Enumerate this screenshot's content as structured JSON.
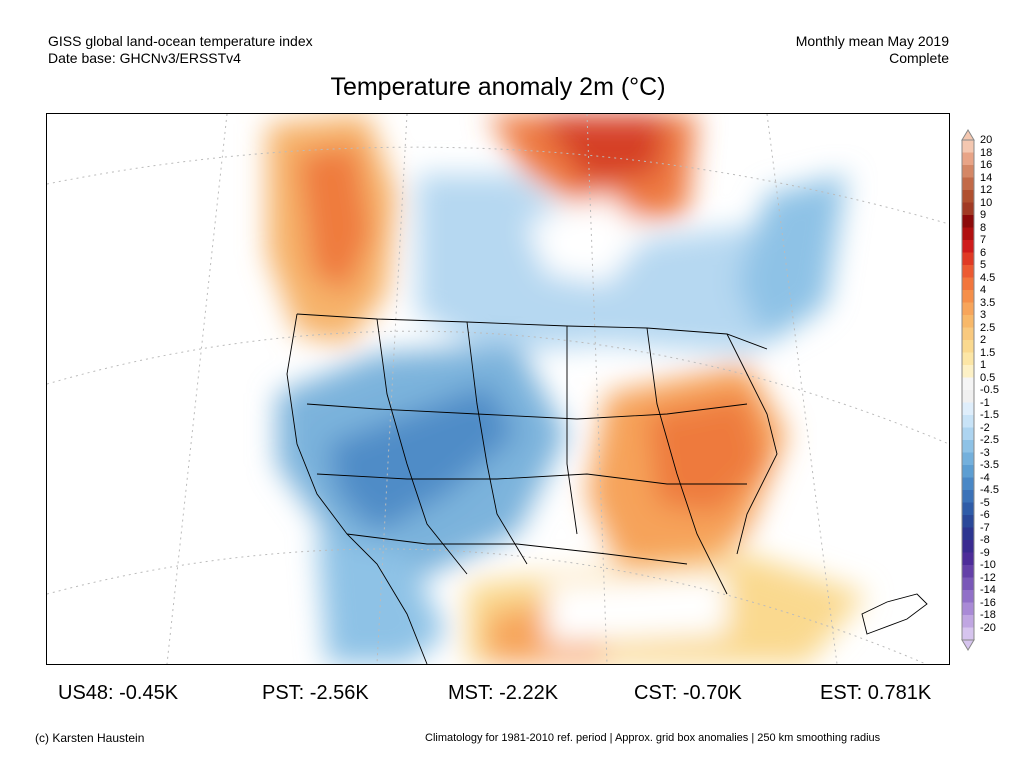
{
  "header": {
    "left_line1": "GISS global land-ocean temperature index",
    "left_line2": "Date base: GHCNv3/ERSSTv4",
    "right_line1": "Monthly mean May 2019",
    "right_line2": "Complete"
  },
  "title": "Temperature anomaly 2m (°C)",
  "colorbar": {
    "labels": [
      "20",
      "18",
      "16",
      "14",
      "12",
      "10",
      "9",
      "8",
      "7",
      "6",
      "5",
      "4.5",
      "4",
      "3.5",
      "3",
      "2.5",
      "2",
      "1.5",
      "1",
      "0.5",
      "-0.5",
      "-1",
      "-1.5",
      "-2",
      "-2.5",
      "-3",
      "-3.5",
      "-4",
      "-4.5",
      "-5",
      "-6",
      "-7",
      "-8",
      "-9",
      "-10",
      "-12",
      "-14",
      "-16",
      "-18",
      "-20"
    ],
    "colors": [
      "#f4c7b0",
      "#e8a487",
      "#d48766",
      "#c26a48",
      "#b0502f",
      "#a13a24",
      "#8c0a0a",
      "#b00f0f",
      "#cf1b1b",
      "#e03a25",
      "#ec5a32",
      "#f2763d",
      "#f58f4a",
      "#f7a55b",
      "#f8b869",
      "#f9c97e",
      "#fad98f",
      "#fce6a6",
      "#fdf1c6",
      "#f5f5f5",
      "#f0f0f0",
      "#dfeefb",
      "#c8e3f7",
      "#add4f0",
      "#8ec2e6",
      "#74b0dc",
      "#5d9ed2",
      "#4a88c6",
      "#3b72b8",
      "#2f5ca8",
      "#2a4899",
      "#2c3590",
      "#3a2a90",
      "#4d2c99",
      "#6440a8",
      "#7a58b8",
      "#9170c8",
      "#a98ad6",
      "#c0a6e2",
      "#d6c4ee"
    ]
  },
  "stats": [
    {
      "region": "US48",
      "label": "US48: -0.45K",
      "value": -0.45
    },
    {
      "region": "PST",
      "label": "PST: -2.56K",
      "value": -2.56
    },
    {
      "region": "MST",
      "label": "MST: -2.22K",
      "value": -2.22
    },
    {
      "region": "CST",
      "label": "CST: -0.70K",
      "value": -0.7
    },
    {
      "region": "EST",
      "label": "EST: 0.781K",
      "value": 0.781
    }
  ],
  "footer": {
    "left": "(c) Karsten Haustein",
    "right": "Climatology for 1981-2010 ref. period | Approx. grid box anomalies | 250 km smoothing radius"
  }
}
